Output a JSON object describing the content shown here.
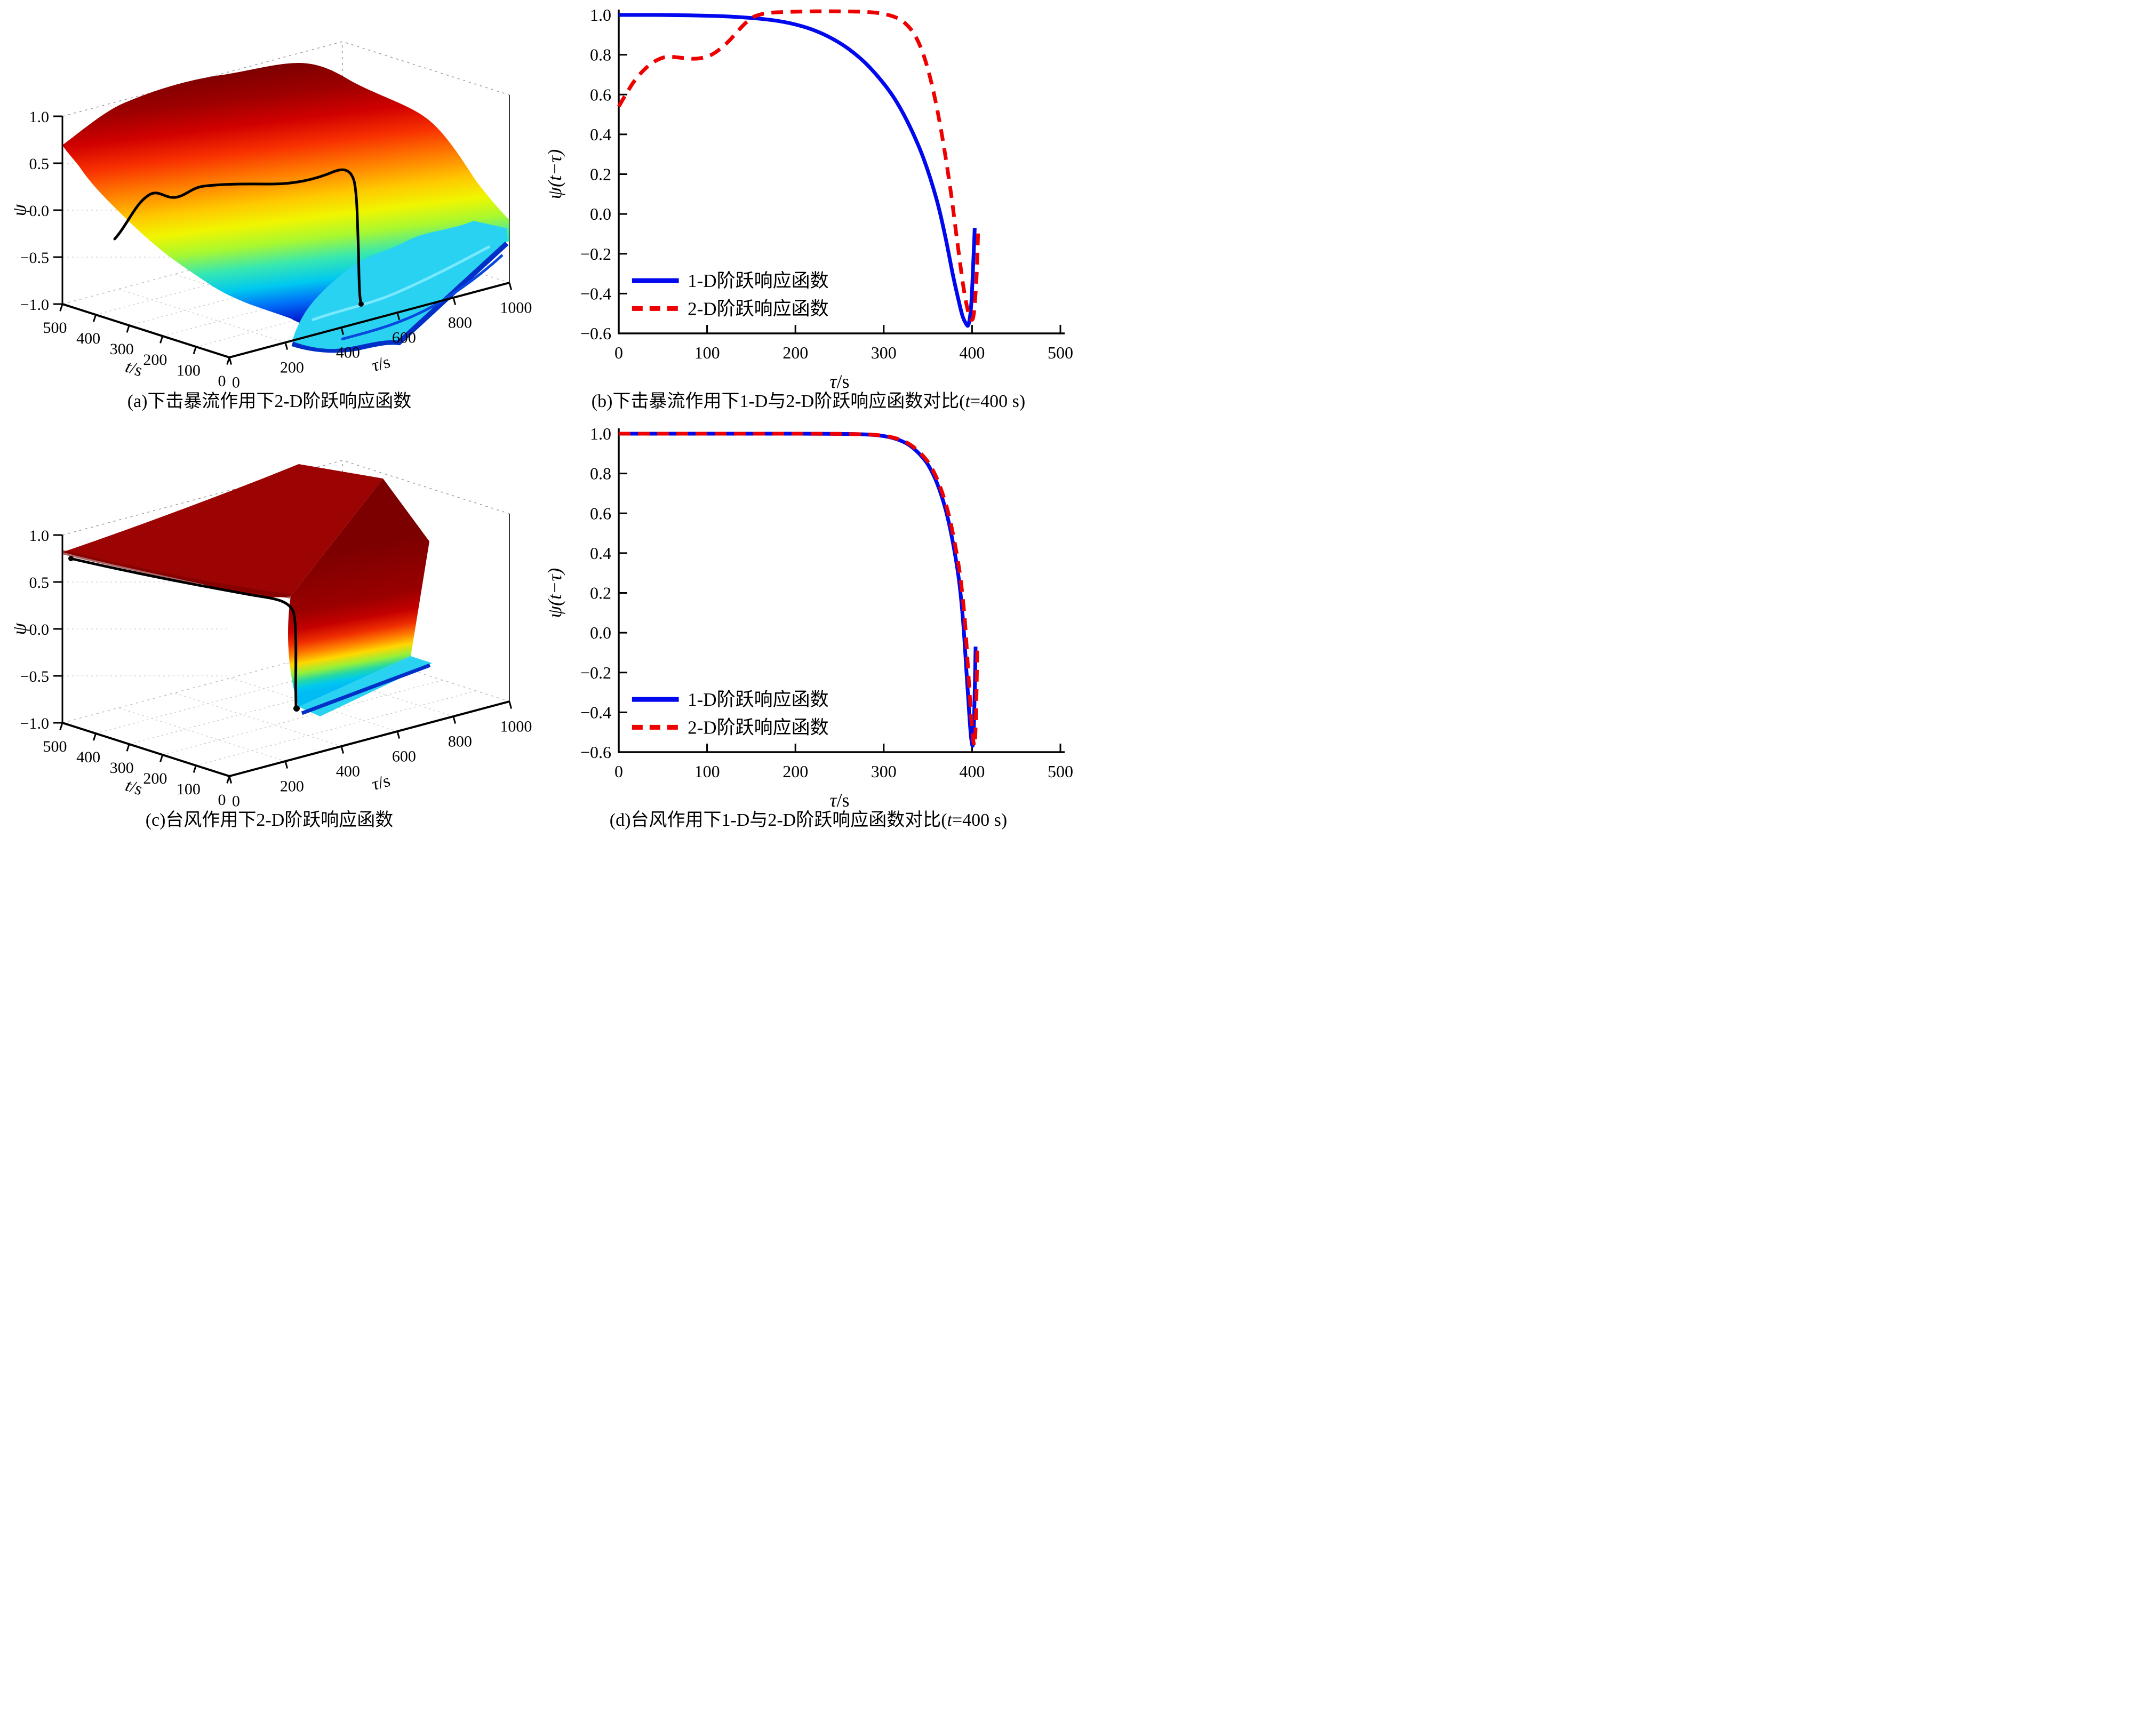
{
  "panels": {
    "a": {
      "cap_pre": "(a)下击暴流作用下2-D阶跃响应函数",
      "cap_var": "",
      "cap_post": ""
    },
    "b": {
      "cap_pre": "(b)下击暴流作用下1-D与2-D阶跃响应函数对比(",
      "cap_var": "t",
      "cap_post": "=400 s)"
    },
    "c": {
      "cap_pre": "(c)台风作用下2-D阶跃响应函数",
      "cap_var": "",
      "cap_post": ""
    },
    "d": {
      "cap_pre": "(d)台风作用下1-D与2-D阶跃响应函数对比(",
      "cap_var": "t",
      "cap_post": "=400 s)"
    }
  },
  "colors": {
    "line_1d": "#0008ee",
    "line_2d": "#ee0000",
    "axis": "#000000",
    "surface_colormap": "jet"
  },
  "chart_data": [
    {
      "id": "a",
      "type": "surface",
      "caption": "(a)下击暴流作用下2-D阶跃响应函数",
      "axes": {
        "t": {
          "label_var": "t",
          "label_unit": "/s",
          "lim": [
            0,
            500
          ],
          "ticks": [
            0,
            100,
            200,
            300,
            400,
            500
          ],
          "tick_labels": [
            "0",
            "100",
            "200",
            "300",
            "400",
            "500"
          ]
        },
        "tau": {
          "label_var": "τ",
          "label_unit": "/s",
          "lim": [
            0,
            1000
          ],
          "ticks": [
            0,
            200,
            400,
            600,
            800,
            1000
          ],
          "tick_labels": [
            "0",
            "200",
            "400",
            "600",
            "800",
            "1000"
          ]
        },
        "psi": {
          "label": "ψ",
          "lim": [
            -1,
            1
          ],
          "ticks": [
            1.0,
            0.5,
            0.0,
            -0.5,
            -1.0
          ],
          "tick_labels": [
            "1.0",
            "0.5",
            "0.0",
            "−0.5",
            "−1.0"
          ]
        }
      },
      "colormap": "jet",
      "features": {
        "plateau": "ψ≈1 dark-red plateau at large t, small–mid τ",
        "valley": "deep-blue valley ψ≈−1 near t≈0, τ≈300–450",
        "shelf": "wavy cyan shelf ψ≈−0.35 for τ≳500",
        "slice_curve": "black slice curve at t=400 s plunging near τ≈400"
      }
    },
    {
      "id": "b",
      "type": "line",
      "caption": "(b)下击暴流作用下1-D与2-D阶跃响应函数对比(t=400 s)",
      "xlabel_var": "τ",
      "xlabel_unit": "/s",
      "ylabel": "ψ(t−τ)",
      "xlim": [
        0,
        500
      ],
      "ylim": [
        -0.6,
        1.0
      ],
      "x_ticks": [
        0,
        100,
        200,
        300,
        400,
        500
      ],
      "x_tick_labels": [
        "0",
        "100",
        "200",
        "300",
        "400",
        "500"
      ],
      "y_ticks": [
        1.0,
        0.8,
        0.6,
        0.4,
        0.2,
        0.0,
        -0.2,
        -0.4,
        -0.6
      ],
      "y_tick_labels": [
        "1.0",
        "0.8",
        "0.6",
        "0.4",
        "0.2",
        "0.0",
        "−0.2",
        "−0.4",
        "−0.6"
      ],
      "legend_position": "lower-left",
      "series": [
        {
          "name": "1-D阶跃响应函数",
          "color": "#0008ee",
          "style": "solid",
          "x": [
            0,
            20,
            40,
            60,
            80,
            100,
            120,
            140,
            160,
            180,
            200,
            220,
            240,
            260,
            280,
            300,
            315,
            330,
            345,
            360,
            370,
            378,
            384,
            389,
            393,
            396,
            399,
            401,
            403
          ],
          "y": [
            1.0,
            1.0,
            1.0,
            0.999,
            0.998,
            0.996,
            0.993,
            0.988,
            0.981,
            0.97,
            0.952,
            0.925,
            0.885,
            0.83,
            0.755,
            0.655,
            0.56,
            0.435,
            0.28,
            0.07,
            -0.12,
            -0.3,
            -0.42,
            -0.51,
            -0.55,
            -0.555,
            -0.46,
            -0.28,
            -0.07
          ]
        },
        {
          "name": "2-D阶跃响应函数",
          "color": "#ee0000",
          "style": "dashed",
          "x": [
            0,
            8,
            18,
            30,
            42,
            55,
            70,
            85,
            95,
            105,
            115,
            125,
            135,
            145,
            155,
            170,
            190,
            220,
            250,
            280,
            300,
            315,
            325,
            335,
            345,
            355,
            365,
            375,
            383,
            390,
            395,
            399,
            402,
            405,
            407
          ],
          "y": [
            0.54,
            0.6,
            0.67,
            0.73,
            0.77,
            0.79,
            0.785,
            0.78,
            0.785,
            0.8,
            0.83,
            0.87,
            0.92,
            0.965,
            0.995,
            1.01,
            1.015,
            1.018,
            1.018,
            1.015,
            1.005,
            0.985,
            0.955,
            0.9,
            0.8,
            0.64,
            0.42,
            0.14,
            -0.13,
            -0.36,
            -0.48,
            -0.53,
            -0.5,
            -0.32,
            -0.07
          ]
        }
      ]
    },
    {
      "id": "c",
      "type": "surface",
      "caption": "(c)台风作用下2-D阶跃响应函数",
      "axes": {
        "t": {
          "label_var": "t",
          "label_unit": "/s",
          "lim": [
            0,
            500
          ],
          "ticks": [
            0,
            100,
            200,
            300,
            400,
            500
          ],
          "tick_labels": [
            "0",
            "100",
            "200",
            "300",
            "400",
            "500"
          ]
        },
        "tau": {
          "label_var": "τ",
          "label_unit": "/s",
          "lim": [
            0,
            1000
          ],
          "ticks": [
            0,
            200,
            400,
            600,
            800,
            1000
          ],
          "tick_labels": [
            "0",
            "200",
            "400",
            "600",
            "800",
            "1000"
          ]
        },
        "psi": {
          "label": "ψ",
          "lim": [
            -1,
            1
          ],
          "ticks": [
            1.0,
            0.5,
            0.0,
            -0.5,
            -1.0
          ],
          "tick_labels": [
            "1.0",
            "0.5",
            "0.0",
            "−0.5",
            "−1.0"
          ]
        }
      },
      "colormap": "jet",
      "features": {
        "plateau": "flat dark-red plateau ψ≈1 over most of (t,τ)",
        "cliff": "sharp rainbow cliff (red→orange→yellow→green→cyan) along τ≈300–1000 diagonal",
        "shelf": "cyan floor strip ψ≈−0.35 with dark-blue edge in front of cliff",
        "slice_curve": "black slice curve at t=400 s descending plateau edge then plunging down cliff"
      }
    },
    {
      "id": "d",
      "type": "line",
      "caption": "(d)台风作用下1-D与2-D阶跃响应函数对比(t=400 s)",
      "xlabel_var": "τ",
      "xlabel_unit": "/s",
      "ylabel": "ψ(t−τ)",
      "xlim": [
        0,
        500
      ],
      "ylim": [
        -0.6,
        1.0
      ],
      "x_ticks": [
        0,
        100,
        200,
        300,
        400,
        500
      ],
      "x_tick_labels": [
        "0",
        "100",
        "200",
        "300",
        "400",
        "500"
      ],
      "y_ticks": [
        1.0,
        0.8,
        0.6,
        0.4,
        0.2,
        0.0,
        -0.2,
        -0.4,
        -0.6
      ],
      "y_tick_labels": [
        "1.0",
        "0.8",
        "0.6",
        "0.4",
        "0.2",
        "0.0",
        "−0.2",
        "−0.4",
        "−0.6"
      ],
      "legend_position": "lower-left",
      "series": [
        {
          "name": "1-D阶跃响应函数",
          "color": "#0008ee",
          "style": "solid",
          "x": [
            0,
            50,
            100,
            150,
            200,
            250,
            280,
            300,
            315,
            328,
            340,
            350,
            360,
            370,
            378,
            385,
            390,
            394,
            397,
            399,
            401,
            402.5,
            404
          ],
          "y": [
            1.0,
            1.0,
            1.0,
            1.0,
            1.0,
            0.999,
            0.996,
            0.988,
            0.972,
            0.945,
            0.9,
            0.845,
            0.755,
            0.62,
            0.46,
            0.27,
            0.05,
            -0.22,
            -0.42,
            -0.53,
            -0.56,
            -0.4,
            -0.07
          ]
        },
        {
          "name": "2-D阶跃响应函数",
          "color": "#ee0000",
          "style": "dashed",
          "x": [
            0,
            50,
            100,
            150,
            200,
            250,
            282,
            302,
            317,
            330,
            342,
            352,
            362,
            372,
            380,
            387,
            392,
            396,
            399,
            401,
            403,
            404.5,
            406
          ],
          "y": [
            1.0,
            1.0,
            1.0,
            1.0,
            1.0,
            0.999,
            0.996,
            0.988,
            0.972,
            0.945,
            0.9,
            0.845,
            0.755,
            0.62,
            0.46,
            0.27,
            0.05,
            -0.22,
            -0.42,
            -0.53,
            -0.56,
            -0.4,
            -0.07
          ]
        }
      ]
    }
  ]
}
